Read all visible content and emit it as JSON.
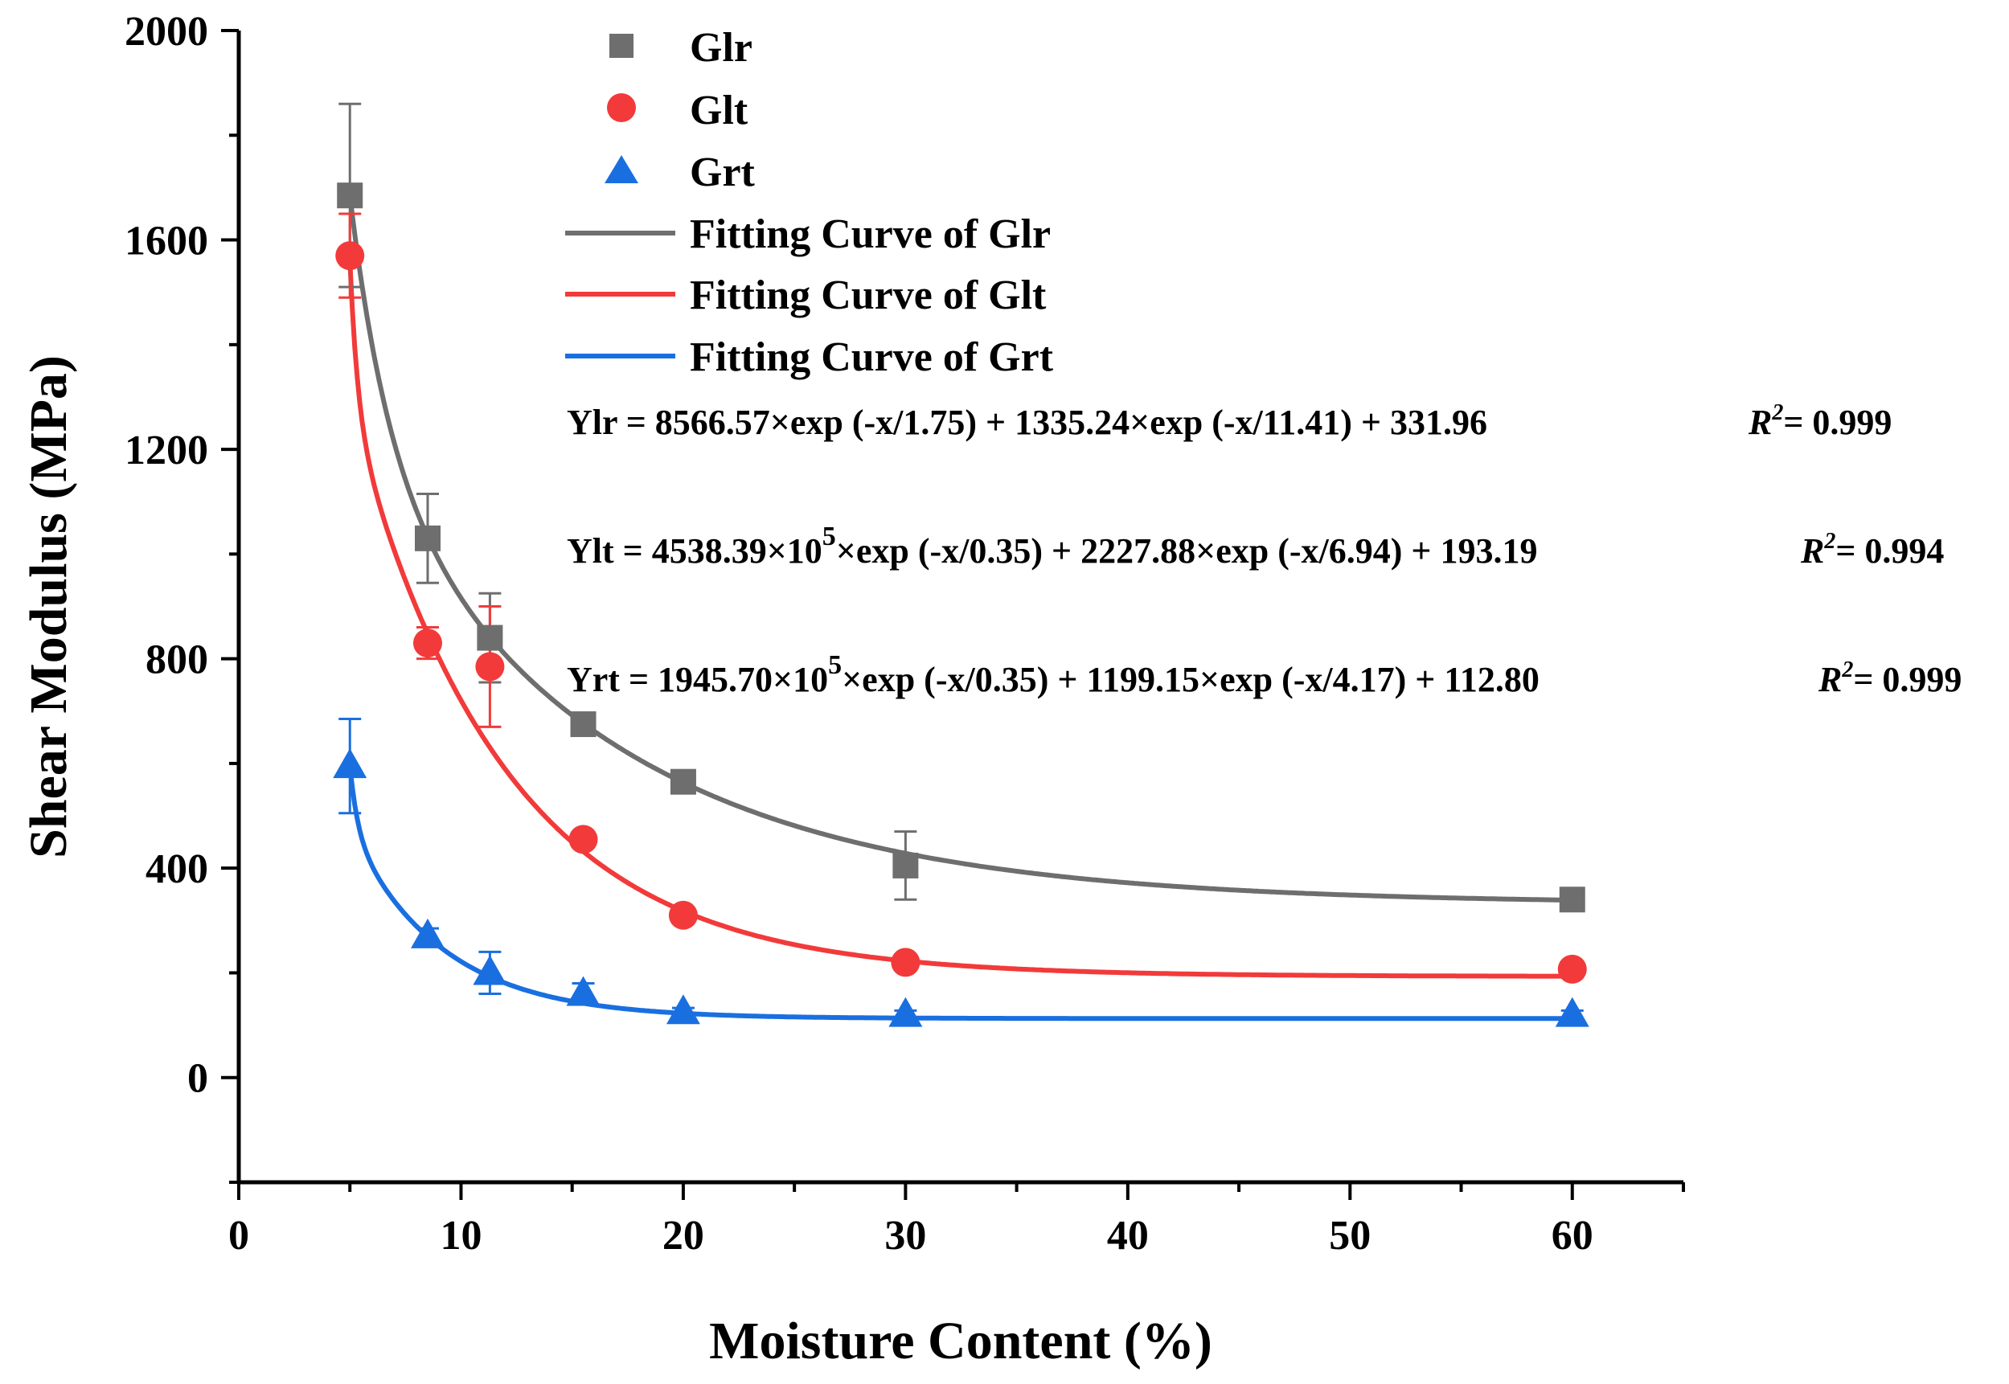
{
  "chart_data": {
    "type": "scatter",
    "xlabel": "Moisture Content (%)",
    "ylabel": "Shear Modulus (MPa)",
    "xlim": [
      0,
      65
    ],
    "ylim": [
      -200,
      2000
    ],
    "x_ticks": [
      0,
      10,
      20,
      30,
      40,
      50,
      60
    ],
    "y_ticks": [
      0,
      400,
      800,
      1200,
      1600,
      2000
    ],
    "x": [
      5,
      8.5,
      11.3,
      15.5,
      20,
      30,
      60
    ],
    "series": [
      {
        "name": "Glr",
        "marker": "square",
        "color": "#6e6e6e",
        "values": [
          1685,
          1030,
          840,
          675,
          565,
          405,
          340
        ],
        "errors": [
          175,
          85,
          85,
          15,
          15,
          65,
          10
        ]
      },
      {
        "name": "Glt",
        "marker": "circle",
        "color": "#f23a3a",
        "values": [
          1570,
          830,
          785,
          455,
          310,
          220,
          207
        ],
        "errors": [
          80,
          30,
          115,
          15,
          10,
          8,
          8
        ]
      },
      {
        "name": "Grt",
        "marker": "triangle",
        "color": "#1a6fe0",
        "values": [
          595,
          270,
          200,
          160,
          125,
          120,
          120
        ],
        "errors": [
          90,
          15,
          40,
          20,
          8,
          8,
          8
        ]
      }
    ],
    "fits": [
      {
        "name": "Fitting Curve of Glr",
        "color": "#6e6e6e",
        "terms": [
          [
            8566.57,
            1.75
          ],
          [
            1335.24,
            11.41
          ]
        ],
        "offset": 331.96,
        "x_range": [
          5,
          60
        ]
      },
      {
        "name": "Fitting Curve of Glt",
        "color": "#f23a3a",
        "terms": [
          [
            453839000,
            0.35
          ],
          [
            2227.88,
            6.94
          ]
        ],
        "offset": 193.19,
        "x_range": [
          5,
          60
        ]
      },
      {
        "name": "Fitting Curve of Grt",
        "color": "#1a6fe0",
        "terms": [
          [
            194570000,
            0.35
          ],
          [
            1199.15,
            4.17
          ]
        ],
        "offset": 112.8,
        "x_range": [
          5,
          60
        ]
      }
    ],
    "equations": [
      {
        "lhs": "Ylr = 8566.57×exp (-x/1.75) + 1335.24×exp (-x/11.41) + 331.96",
        "r2_label": "R",
        "r2_sup": "2",
        "r2_value": "= 0.999"
      },
      {
        "lhs": "Ylt = 4538.39×10",
        "lhs_sup": "5",
        "rhs": "×exp (-x/0.35) + 2227.88×exp (-x/6.94) + 193.19",
        "r2_label": "R",
        "r2_sup": "2",
        "r2_value": "= 0.994"
      },
      {
        "lhs": "Yrt = 1945.70×10",
        "lhs_sup": "5",
        "rhs": "×exp (-x/0.35) + 1199.15×exp (-x/4.17) + 112.80",
        "r2_label": "R",
        "r2_sup": "2",
        "r2_value": "= 0.999"
      }
    ],
    "legend_position": "top-center"
  }
}
